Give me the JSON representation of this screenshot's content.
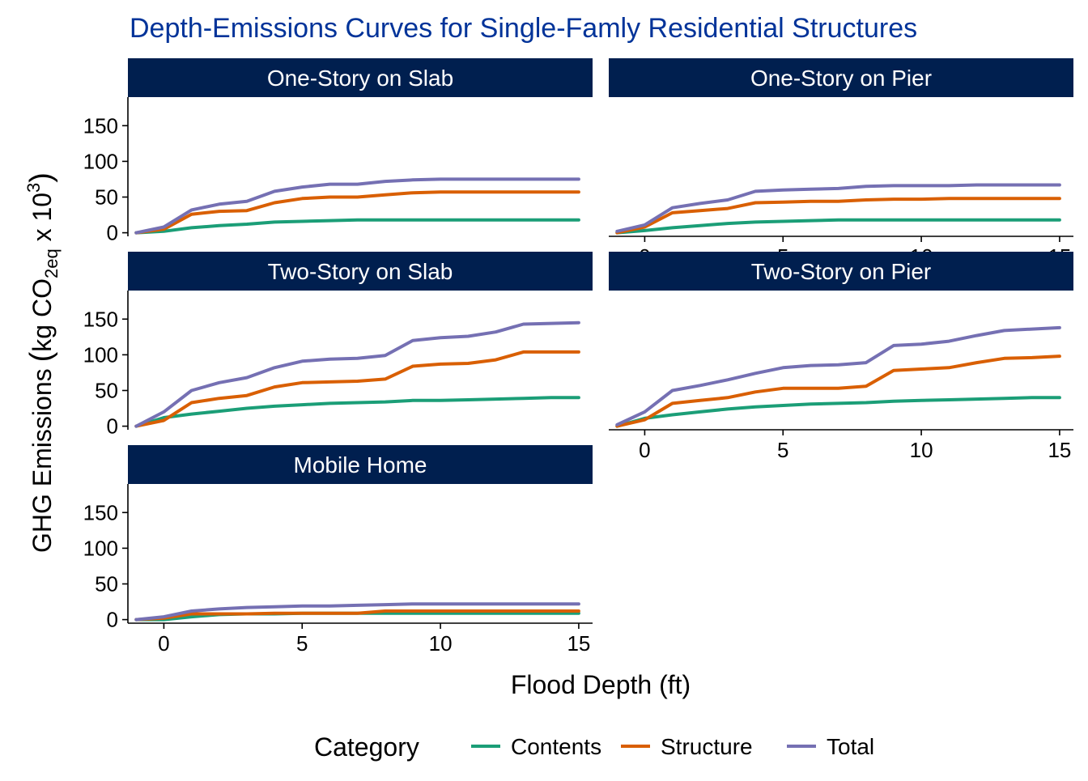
{
  "chart_data": {
    "type": "line",
    "title": "Depth-Emissions Curves for Single-Famly Residential Structures",
    "xlabel": "Flood Depth (ft)",
    "ylabel": {
      "main": "GHG Emissions",
      "unit_prefix": "kg CO",
      "unit_sub": "2eq",
      "unit_mid": " x 10",
      "unit_sup": "3"
    },
    "xlim": [
      -1.3,
      15.5
    ],
    "ylim": [
      -5,
      190
    ],
    "x_ticks": [
      0,
      5,
      10,
      15
    ],
    "y_ticks": [
      0,
      50,
      100,
      150
    ],
    "grid": false,
    "legend": {
      "title": "Category",
      "position": "bottom",
      "entries": [
        "Contents",
        "Structure",
        "Total"
      ]
    },
    "colors": {
      "Contents": "#1b9e77",
      "Structure": "#d95f02",
      "Total": "#7570b3",
      "strip": "#001f4f",
      "title": "#003399"
    },
    "x": [
      -1,
      0,
      1,
      2,
      3,
      4,
      5,
      6,
      7,
      8,
      9,
      10,
      11,
      12,
      13,
      14,
      15
    ],
    "panels": [
      {
        "name": "One-Story on Slab",
        "series": [
          {
            "name": "Contents",
            "values": [
              0,
              2,
              7,
              10,
              12,
              15,
              16,
              17,
              18,
              18,
              18,
              18,
              18,
              18,
              18,
              18,
              18
            ]
          },
          {
            "name": "Structure",
            "values": [
              0,
              5,
              26,
              30,
              31,
              42,
              48,
              50,
              50,
              53,
              56,
              57,
              57,
              57,
              57,
              57,
              57
            ]
          },
          {
            "name": "Total",
            "values": [
              0,
              8,
              32,
              40,
              44,
              58,
              64,
              68,
              68,
              72,
              74,
              75,
              75,
              75,
              75,
              75,
              75
            ]
          }
        ]
      },
      {
        "name": "One-Story on Pier",
        "series": [
          {
            "name": "Contents",
            "values": [
              0,
              3,
              7,
              10,
              13,
              15,
              16,
              17,
              18,
              18,
              18,
              18,
              18,
              18,
              18,
              18,
              18
            ]
          },
          {
            "name": "Structure",
            "values": [
              0,
              8,
              28,
              31,
              34,
              42,
              43,
              44,
              44,
              46,
              47,
              47,
              48,
              48,
              48,
              48,
              48
            ]
          },
          {
            "name": "Total",
            "values": [
              2,
              11,
              35,
              41,
              46,
              58,
              60,
              61,
              62,
              65,
              66,
              66,
              66,
              67,
              67,
              67,
              67
            ]
          }
        ]
      },
      {
        "name": "Two-Story on Slab",
        "series": [
          {
            "name": "Contents",
            "values": [
              0,
              12,
              17,
              21,
              25,
              28,
              30,
              32,
              33,
              34,
              36,
              36,
              37,
              38,
              39,
              40,
              40
            ]
          },
          {
            "name": "Structure",
            "values": [
              0,
              8,
              33,
              39,
              43,
              55,
              61,
              62,
              63,
              66,
              84,
              87,
              88,
              93,
              104,
              104,
              104
            ]
          },
          {
            "name": "Total",
            "values": [
              0,
              20,
              50,
              61,
              68,
              82,
              91,
              94,
              95,
              99,
              120,
              124,
              126,
              132,
              143,
              144,
              145
            ]
          }
        ]
      },
      {
        "name": "Two-Story on Pier",
        "series": [
          {
            "name": "Contents",
            "values": [
              0,
              11,
              16,
              20,
              24,
              27,
              29,
              31,
              32,
              33,
              35,
              36,
              37,
              38,
              39,
              40,
              40
            ]
          },
          {
            "name": "Structure",
            "values": [
              0,
              9,
              32,
              36,
              40,
              48,
              53,
              53,
              53,
              56,
              78,
              80,
              82,
              89,
              95,
              96,
              98
            ]
          },
          {
            "name": "Total",
            "values": [
              2,
              20,
              50,
              57,
              65,
              74,
              82,
              85,
              86,
              89,
              113,
              115,
              119,
              127,
              134,
              136,
              138
            ]
          }
        ]
      },
      {
        "name": "Mobile Home",
        "series": [
          {
            "name": "Contents",
            "values": [
              0,
              0,
              4,
              7,
              8,
              8,
              9,
              9,
              9,
              9,
              9,
              9,
              9,
              9,
              9,
              9,
              9
            ]
          },
          {
            "name": "Structure",
            "values": [
              0,
              2,
              8,
              8,
              8,
              9,
              9,
              9,
              9,
              12,
              12,
              12,
              12,
              12,
              12,
              12,
              12
            ]
          },
          {
            "name": "Total",
            "values": [
              0,
              4,
              12,
              15,
              17,
              18,
              19,
              19,
              20,
              21,
              22,
              22,
              22,
              22,
              22,
              22,
              22
            ]
          }
        ]
      }
    ]
  }
}
